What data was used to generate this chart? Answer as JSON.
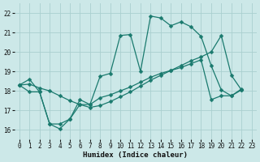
{
  "xlabel": "Humidex (Indice chaleur)",
  "background_color": "#cce8e8",
  "line_color": "#1a7a6e",
  "grid_color": "#aacfcf",
  "x_ticks": [
    0,
    1,
    2,
    3,
    4,
    5,
    6,
    7,
    8,
    9,
    10,
    11,
    12,
    13,
    14,
    15,
    16,
    17,
    18,
    19,
    20,
    21,
    22,
    23
  ],
  "y_ticks": [
    16,
    17,
    18,
    19,
    20,
    21,
    22
  ],
  "xlim": [
    -0.5,
    23.5
  ],
  "ylim": [
    15.5,
    22.5
  ],
  "top_x": [
    0,
    1,
    2,
    3,
    4,
    5,
    6,
    7,
    8,
    9,
    10,
    11,
    12,
    13,
    14,
    15,
    16,
    17,
    18,
    19,
    20,
    21,
    22
  ],
  "top_y": [
    18.3,
    18.6,
    17.95,
    16.3,
    16.3,
    16.55,
    17.55,
    17.3,
    18.75,
    18.9,
    20.85,
    20.9,
    19.0,
    21.85,
    21.75,
    21.35,
    21.55,
    21.3,
    20.8,
    19.3,
    18.05,
    17.75,
    18.1
  ],
  "mid_x": [
    0,
    1,
    2,
    3,
    4,
    5,
    6,
    7,
    8,
    9,
    10,
    11,
    12,
    13,
    14,
    15,
    16,
    17,
    18,
    19,
    20,
    21,
    22
  ],
  "mid_y": [
    18.3,
    18.35,
    18.15,
    18.0,
    17.75,
    17.5,
    17.3,
    17.15,
    17.25,
    17.45,
    17.7,
    17.95,
    18.25,
    18.55,
    18.8,
    19.05,
    19.3,
    19.55,
    19.75,
    20.0,
    20.85,
    18.8,
    18.05
  ],
  "bot_x": [
    0,
    1,
    2,
    3,
    4,
    5,
    6,
    7,
    8,
    9,
    10,
    11,
    12,
    13,
    14,
    15,
    16,
    17,
    18,
    19,
    20,
    21,
    22
  ],
  "bot_y": [
    18.3,
    17.95,
    17.95,
    16.3,
    16.05,
    16.55,
    17.3,
    17.3,
    17.65,
    17.8,
    18.0,
    18.2,
    18.45,
    18.7,
    18.9,
    19.05,
    19.2,
    19.4,
    19.6,
    17.55,
    17.75,
    17.75,
    18.05
  ]
}
